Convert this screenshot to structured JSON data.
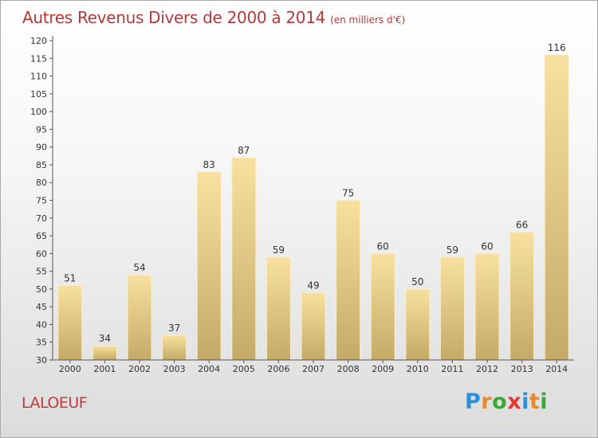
{
  "header": {
    "title": "Autres Revenus Divers de 2000 à 2014",
    "subtitle": "(en milliers d'€)"
  },
  "footer": {
    "place": "LALOEUF",
    "brand": "Proxiti",
    "brand_colors": [
      "#2f8fd8",
      "#e8892b",
      "#3aa935",
      "#e53935",
      "#2f8fd8",
      "#e8892b",
      "#3aa935"
    ]
  },
  "chart_data": {
    "type": "bar",
    "title": "Autres Revenus Divers de 2000 à 2014",
    "subtitle": "(en milliers d'€)",
    "categories": [
      "2000",
      "2001",
      "2002",
      "2003",
      "2004",
      "2005",
      "2006",
      "2007",
      "2008",
      "2009",
      "2010",
      "2011",
      "2012",
      "2013",
      "2014"
    ],
    "values": [
      51,
      34,
      54,
      37,
      83,
      87,
      59,
      49,
      75,
      60,
      50,
      59,
      60,
      66,
      116
    ],
    "ylim": [
      30,
      120
    ],
    "yticks": [
      30,
      35,
      40,
      45,
      50,
      55,
      60,
      65,
      70,
      75,
      80,
      85,
      90,
      95,
      100,
      105,
      110,
      115,
      120
    ],
    "grid": false,
    "legend": "none",
    "colors": {
      "bar_light": "#f8e1a0",
      "bar_dark": "#c4aa68",
      "axis": "#555555",
      "tick_text": "#333333"
    }
  }
}
